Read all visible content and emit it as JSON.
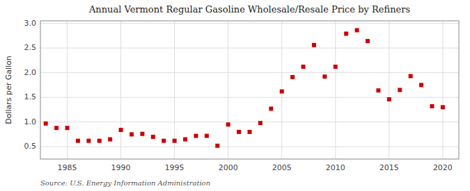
{
  "chart_data": {
    "type": "scatter",
    "title": "Annual Vermont Regular Gasoline Wholesale/Resale Price by Refiners",
    "ylabel": "Dollars per Gallon",
    "annotations": [
      "Source: U.S. Energy Information Administration"
    ],
    "color": "#cc0000",
    "marker": "square",
    "grid": true,
    "xlim": [
      1982.5,
      2021.5
    ],
    "ylim": [
      0.25,
      3.05
    ],
    "xticks": [
      1985,
      1990,
      1995,
      2000,
      2005,
      2010,
      2015,
      2020
    ],
    "yticks": [
      0.5,
      {
        "value": 1.0,
        "label": "1.0"
      },
      1.5,
      {
        "value": 2.0,
        "label": "2.0"
      },
      2.5,
      {
        "value": 3.0,
        "label": "3.0"
      }
    ],
    "x": [
      1983,
      1984,
      1985,
      1986,
      1987,
      1988,
      1989,
      1990,
      1991,
      1992,
      1993,
      1994,
      1995,
      1996,
      1997,
      1998,
      1999,
      2000,
      2001,
      2002,
      2003,
      2004,
      2005,
      2006,
      2007,
      2008,
      2009,
      2010,
      2011,
      2012,
      2013,
      2014,
      2015,
      2016,
      2017,
      2018,
      2019,
      2020
    ],
    "values": [
      0.97,
      0.88,
      0.88,
      0.62,
      0.62,
      0.62,
      0.65,
      0.84,
      0.75,
      0.76,
      0.7,
      0.62,
      0.62,
      0.65,
      0.72,
      0.72,
      0.52,
      0.95,
      0.8,
      0.8,
      0.98,
      1.27,
      1.62,
      1.91,
      2.12,
      2.56,
      1.92,
      2.12,
      2.79,
      2.86,
      2.64,
      1.64,
      1.46,
      1.65,
      1.93,
      1.75,
      1.32,
      1.3
    ]
  }
}
